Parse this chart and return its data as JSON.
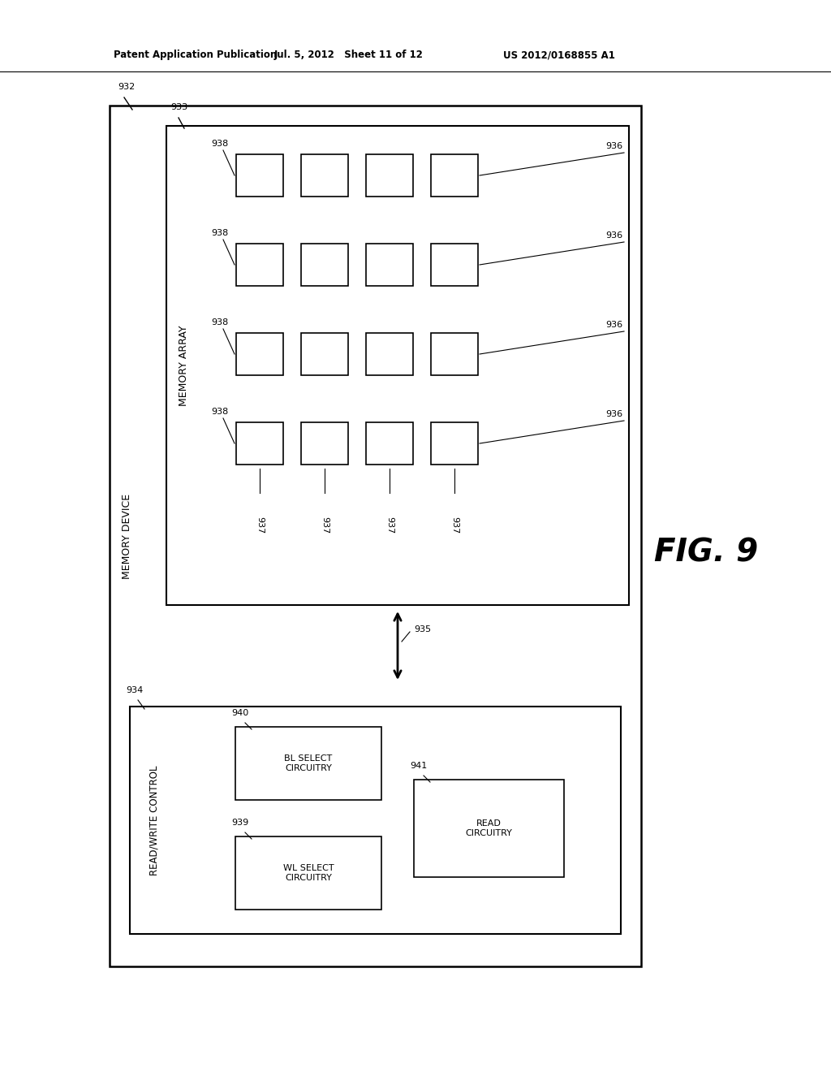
{
  "bg_color": "#ffffff",
  "header_left": "Patent Application Publication",
  "header_mid": "Jul. 5, 2012   Sheet 11 of 12",
  "header_right": "US 2012/0168855 A1",
  "fig_label": "FIG. 9",
  "memory_device_label": "MEMORY DEVICE",
  "memory_array_label": "MEMORY ARRAY",
  "rw_control_label": "READ/WRITE CONTROL",
  "ref932": "932",
  "ref933": "933",
  "ref934": "934",
  "ref935": "935",
  "ref936": "936",
  "ref937": "937",
  "ref938": "938",
  "ref939": "939",
  "ref940": "940",
  "ref941": "941",
  "lw_outer": 1.8,
  "lw_inner": 1.5,
  "lw_cell": 1.2,
  "lw_line": 1.4
}
